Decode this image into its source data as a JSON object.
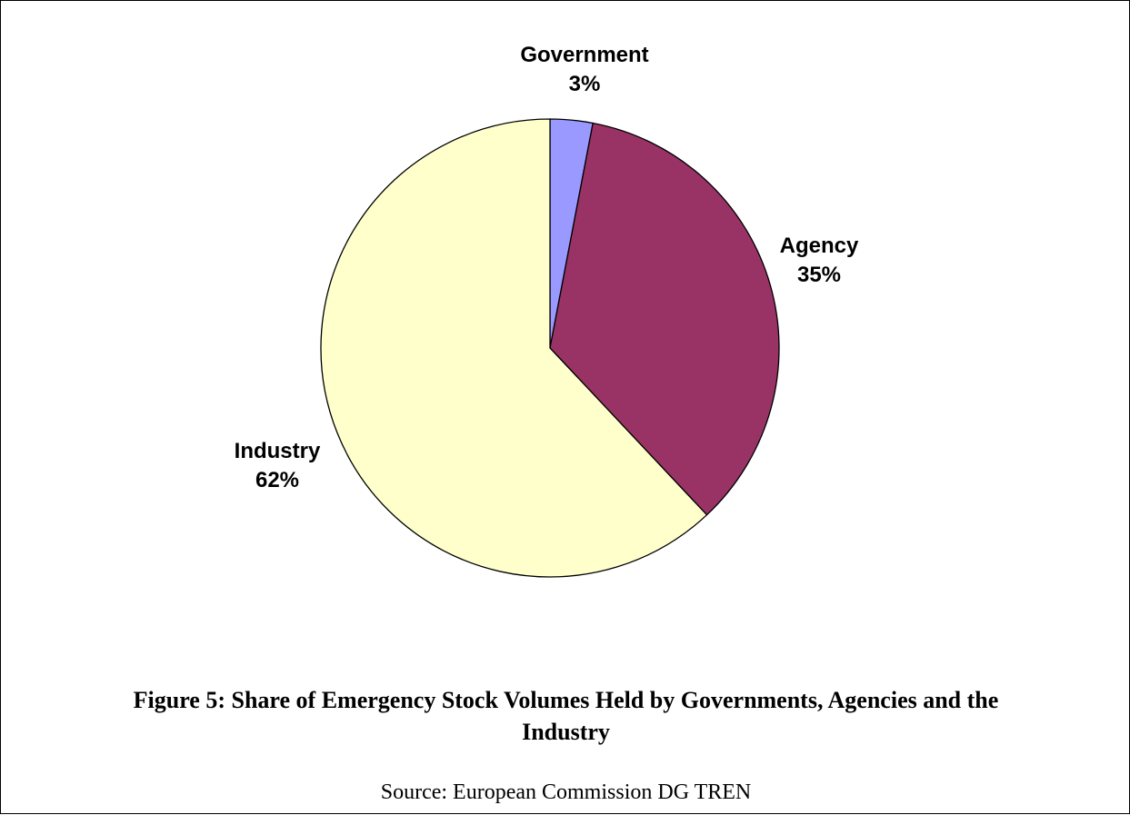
{
  "chart_data": {
    "type": "pie",
    "title": "",
    "slices": [
      {
        "name": "Government",
        "value": 3,
        "value_label": "3%",
        "color": "#9999ff"
      },
      {
        "name": "Agency",
        "value": 35,
        "value_label": "35%",
        "color": "#993366"
      },
      {
        "name": "Industry",
        "value": 62,
        "value_label": "62%",
        "color": "#ffffcc"
      }
    ],
    "start_at": "top",
    "direction": "clockwise",
    "outline_color": "#000000",
    "legend": "none"
  },
  "caption": {
    "line1": "Figure 5: Share of Emergency Stock Volumes Held by Governments, Agencies and the",
    "line2": "Industry"
  },
  "source": "Source: European Commission DG TREN"
}
